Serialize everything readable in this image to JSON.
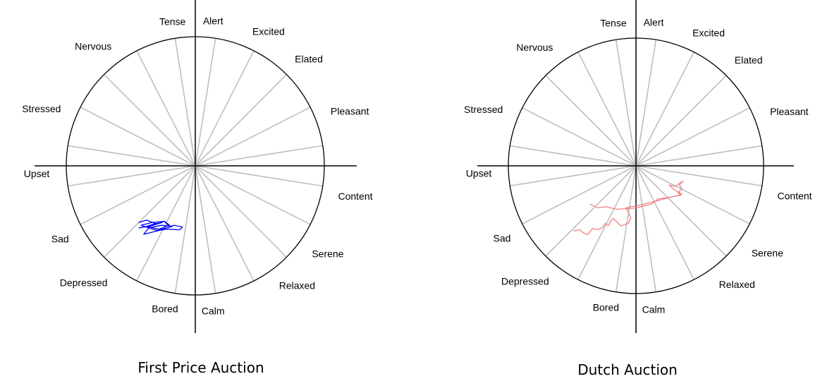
{
  "figure": {
    "emotion_labels": [
      "Alert",
      "Excited",
      "Elated",
      "Pleasant",
      "Content",
      "Serene",
      "Relaxed",
      "Calm",
      "Bored",
      "Depressed",
      "Sad",
      "Upset",
      "Stressed",
      "Nervous",
      "Tense"
    ],
    "colors": {
      "axis": "#000000",
      "spoke": "#bfbfbf",
      "circle": "#000000",
      "first_price": "#0000ff",
      "dutch": "#f08080"
    }
  },
  "chart_data": [
    {
      "type": "line",
      "subtype": "circumplex-trajectory",
      "title": "",
      "caption": "First Price Auction",
      "xlabel": "",
      "ylabel": "",
      "xlim": [
        -1,
        1
      ],
      "ylim": [
        -1,
        1
      ],
      "grid": false,
      "spokes": 20,
      "series": [
        {
          "color": "#0000ff",
          "x": [
            -0.44,
            -0.38,
            -0.3,
            -0.24,
            -0.2,
            -0.16,
            -0.1,
            -0.12,
            -0.22,
            -0.28,
            -0.4,
            -0.36,
            -0.26,
            -0.18,
            -0.3,
            -0.42,
            -0.34,
            -0.24,
            -0.2,
            -0.28,
            -0.38,
            -0.32,
            -0.26,
            -0.36,
            -0.44
          ],
          "y": [
            -0.44,
            -0.42,
            -0.45,
            -0.43,
            -0.47,
            -0.46,
            -0.475,
            -0.495,
            -0.49,
            -0.5,
            -0.53,
            -0.48,
            -0.46,
            -0.47,
            -0.5,
            -0.46,
            -0.44,
            -0.43,
            -0.46,
            -0.49,
            -0.47,
            -0.45,
            -0.44,
            -0.47,
            -0.48
          ]
        }
      ]
    },
    {
      "type": "line",
      "subtype": "circumplex-trajectory",
      "title": "",
      "caption": "Dutch Auction",
      "xlabel": "",
      "ylabel": "",
      "xlim": [
        -1,
        1
      ],
      "ylim": [
        -1,
        1
      ],
      "grid": false,
      "spokes": 20,
      "series": [
        {
          "color": "#f08080",
          "x": [
            -0.49,
            -0.44,
            -0.42,
            -0.38,
            -0.34,
            -0.3,
            -0.26,
            -0.24,
            -0.22,
            -0.18,
            -0.12,
            -0.06,
            -0.04,
            -0.06,
            -0.08,
            -0.04,
            0.02,
            0.1,
            0.18,
            0.25,
            0.3,
            0.34,
            0.36,
            0.32,
            0.28,
            0.26,
            0.31,
            0.35,
            0.37,
            0.34,
            0.36,
            0.33,
            0.35,
            0.3,
            0.17,
            0.12,
            0.0,
            -0.15,
            -0.24,
            -0.3,
            -0.36
          ],
          "y": [
            -0.51,
            -0.5,
            -0.52,
            -0.54,
            -0.49,
            -0.5,
            -0.48,
            -0.45,
            -0.47,
            -0.41,
            -0.47,
            -0.45,
            -0.41,
            -0.36,
            -0.33,
            -0.32,
            -0.31,
            -0.29,
            -0.27,
            -0.25,
            -0.24,
            -0.23,
            -0.22,
            -0.2,
            -0.17,
            -0.15,
            -0.16,
            -0.13,
            -0.12,
            -0.15,
            -0.18,
            -0.21,
            -0.23,
            -0.24,
            -0.26,
            -0.3,
            -0.33,
            -0.34,
            -0.32,
            -0.33,
            -0.3
          ]
        }
      ]
    }
  ]
}
